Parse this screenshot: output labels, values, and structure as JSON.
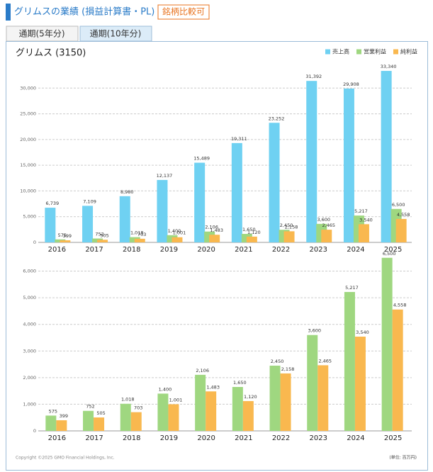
{
  "header": {
    "title": "グリムスの業績 (損益計算書・PL)",
    "badge": "銘柄比較可"
  },
  "tabs": [
    "通期(5年分)",
    "通期(10年分)"
  ],
  "chart_data": [
    {
      "type": "bar",
      "title": "グリムス (3150)",
      "legend": "top-right",
      "grid": true,
      "categories": [
        "2016",
        "2017",
        "2018",
        "2019",
        "2020",
        "2021",
        "2022",
        "2023",
        "2024",
        "2025"
      ],
      "series": [
        {
          "name": "売上高",
          "color": "#6fd1f2",
          "values": [
            6739,
            7109,
            8980,
            12137,
            15489,
            19311,
            23252,
            31392,
            29908,
            33340
          ],
          "value_labels": [
            "6,739",
            "7,109",
            "8,980",
            "12,137",
            "15,489",
            "19,311",
            "23,252",
            "31,392",
            "29,908",
            "33,340"
          ]
        },
        {
          "name": "営業利益",
          "color": "#9fd780",
          "values": [
            575,
            752,
            1018,
            1400,
            2106,
            1650,
            2450,
            3600,
            5217,
            6500
          ],
          "value_labels": [
            "575",
            "752",
            "1,018",
            "1,400",
            "2,106",
            "1,650",
            "2,450",
            "3,600",
            "5,217",
            "6,500"
          ]
        },
        {
          "name": "純利益",
          "color": "#f9b84f",
          "values": [
            399,
            505,
            703,
            1001,
            1483,
            1120,
            2158,
            2465,
            3540,
            4558
          ],
          "value_labels": [
            "399",
            "505",
            "703",
            "1,001",
            "1,483",
            "1,120",
            "2,158",
            "2,465",
            "3,540",
            "4,558"
          ]
        }
      ],
      "ylim": [
        0,
        35000
      ],
      "yticks": [
        0,
        {
          "value": 5000,
          "label": "5,000"
        },
        {
          "value": 10000,
          "label": "10,000"
        },
        {
          "value": 15000,
          "label": "15,000"
        },
        {
          "value": 20000,
          "label": "20,000"
        },
        {
          "value": 25000,
          "label": "25,000"
        },
        {
          "value": 30000,
          "label": "30,000"
        }
      ]
    },
    {
      "type": "bar",
      "grid": true,
      "categories": [
        "2016",
        "2017",
        "2018",
        "2019",
        "2020",
        "2021",
        "2022",
        "2023",
        "2024",
        "2025"
      ],
      "series": [
        {
          "color": "#9fd780",
          "values": [
            575,
            752,
            1018,
            1400,
            2106,
            1650,
            2450,
            3600,
            5217,
            6500
          ],
          "value_labels": [
            "575",
            "752",
            "1,018",
            "1,400",
            "2,106",
            "1,650",
            "2,450",
            "3,600",
            "5,217",
            "6,500"
          ]
        },
        {
          "color": "#f9b84f",
          "values": [
            399,
            505,
            703,
            1001,
            1483,
            1120,
            2158,
            2465,
            3540,
            4558
          ],
          "value_labels": [
            "399",
            "505",
            "703",
            "1,001",
            "1,483",
            "1,120",
            "2,158",
            "2,465",
            "3,540",
            "4,558"
          ]
        }
      ],
      "ylim": [
        0,
        6600
      ],
      "yticks": [
        0,
        {
          "value": 1000,
          "label": "1,000"
        },
        {
          "value": 2000,
          "label": "2,000"
        },
        {
          "value": 3000,
          "label": "3,000"
        },
        {
          "value": 4000,
          "label": "4,000"
        },
        {
          "value": 5000,
          "label": "5,000"
        },
        {
          "value": 6000,
          "label": "6,000"
        }
      ]
    }
  ],
  "footer": {
    "copyright": "Copyright ©2025 GMO Financial Holdings, Inc.",
    "unit": "(単位: 百万円)"
  }
}
